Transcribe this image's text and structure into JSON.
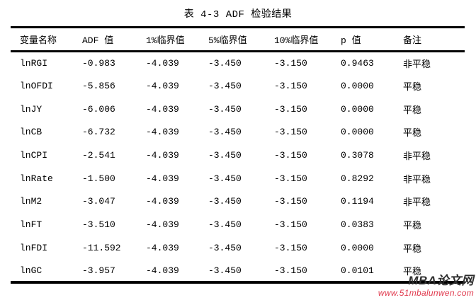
{
  "page": {
    "background": "#ffffff",
    "text_color": "#000000"
  },
  "table": {
    "title": "表 4-3 ADF 检验结果",
    "columns": [
      "变量名称",
      "ADF 值",
      "1%临界值",
      "5%临界值",
      "10%临界值",
      "p 值",
      "备注"
    ],
    "rows": [
      [
        "lnRGI",
        "-0.983",
        "-4.039",
        "-3.450",
        "-3.150",
        "0.9463",
        "非平稳"
      ],
      [
        "lnOFDI",
        "-5.856",
        "-4.039",
        "-3.450",
        "-3.150",
        "0.0000",
        "平稳"
      ],
      [
        "lnJY",
        "-6.006",
        "-4.039",
        "-3.450",
        "-3.150",
        "0.0000",
        "平稳"
      ],
      [
        "lnCB",
        "-6.732",
        "-4.039",
        "-3.450",
        "-3.150",
        "0.0000",
        "平稳"
      ],
      [
        "lnCPI",
        "-2.541",
        "-4.039",
        "-3.450",
        "-3.150",
        "0.3078",
        "非平稳"
      ],
      [
        "lnRate",
        "-1.500",
        "-4.039",
        "-3.450",
        "-3.150",
        "0.8292",
        "非平稳"
      ],
      [
        "lnM2",
        "-3.047",
        "-4.039",
        "-3.450",
        "-3.150",
        "0.1194",
        "非平稳"
      ],
      [
        "lnFT",
        "-3.510",
        "-4.039",
        "-3.450",
        "-3.150",
        "0.0383",
        "平稳"
      ],
      [
        "lnFDI",
        "-11.592",
        "-4.039",
        "-3.450",
        "-3.150",
        "0.0000",
        "平稳"
      ],
      [
        "lnGC",
        "-3.957",
        "-4.039",
        "-3.450",
        "-3.150",
        "0.0101",
        "平稳"
      ]
    ]
  },
  "watermark": {
    "brand": "MBA论文网",
    "url": "www.51mbalunwen.com",
    "brand_color": "#2d2d2d",
    "url_color": "#e03a4e"
  }
}
